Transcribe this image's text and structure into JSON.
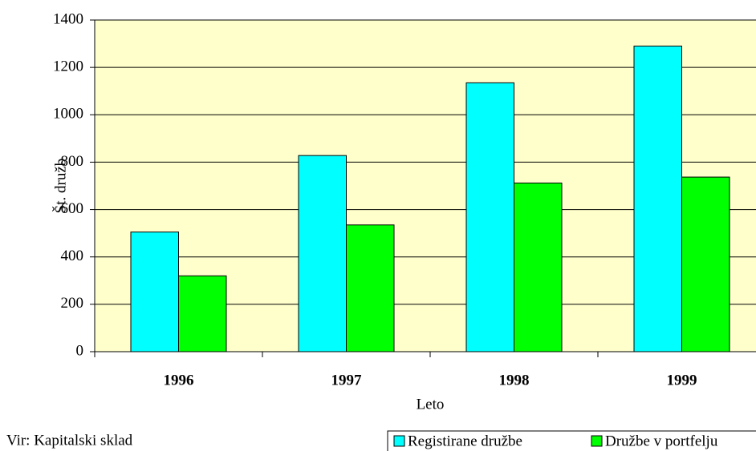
{
  "chart_data": {
    "type": "bar",
    "categories": [
      "1996",
      "1997",
      "1998",
      "1999"
    ],
    "series": [
      {
        "name": "Registirane družbe",
        "color": "#00ffff",
        "values": [
          505,
          828,
          1135,
          1290
        ]
      },
      {
        "name": "Družbe v portfelju",
        "color": "#00ff00",
        "values": [
          320,
          535,
          712,
          737
        ]
      }
    ],
    "ylim": [
      0,
      1400
    ],
    "yticks": [
      0,
      200,
      400,
      600,
      800,
      1000,
      1200,
      1400
    ],
    "x_label": "Leto",
    "y_label": "Št. družb",
    "grid": true,
    "source": "Vir: Kapitalski sklad",
    "background": "#ffffcc"
  }
}
